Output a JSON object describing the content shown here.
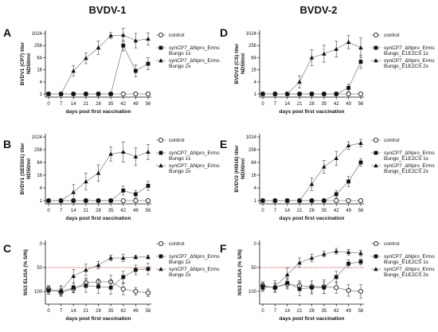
{
  "figure": {
    "column_titles": [
      "BVDV-1",
      "BVDV-2"
    ]
  },
  "chart_data": [
    {
      "type": "line",
      "panel": "A",
      "ylabel": "BVDV1 (CP7) titer ND50/ml",
      "xlabel": "days post first vaccination",
      "x": [
        0,
        7,
        14,
        21,
        28,
        35,
        42,
        49,
        56
      ],
      "yscale": "log2",
      "yticks": [
        "1",
        "4",
        "16",
        "64",
        "256",
        "1024"
      ],
      "ylim": [
        1,
        1024
      ],
      "series": [
        {
          "name": "control",
          "marker": "circle-open",
          "values": [
            1,
            1,
            1,
            1,
            1,
            1,
            1,
            1,
            1
          ]
        },
        {
          "name_parts": [
            "synCP7_ΔN",
            "pro",
            "_E",
            "rms",
            " Bungo 1x"
          ],
          "name": "synCP7_ΔNpro_Erms Bungo 1x",
          "marker": "square",
          "values": [
            1,
            1,
            1,
            1,
            1,
            1,
            256,
            14,
            32
          ],
          "err": [
            0,
            0,
            0,
            0,
            0,
            0,
            0.9,
            1.0,
            1.0
          ]
        },
        {
          "name_parts": [
            "synCP7_ΔN",
            "pro",
            "_E",
            "rms",
            " Bungo 2x"
          ],
          "name": "synCP7_ΔNpro_Erms Bungo 2x",
          "marker": "triangle",
          "values": [
            1,
            1,
            14,
            60,
            200,
            800,
            850,
            450,
            550
          ],
          "err": [
            0,
            0,
            0.9,
            0.9,
            1.1,
            0.5,
            1.1,
            1.2,
            1.0
          ]
        }
      ]
    },
    {
      "type": "line",
      "panel": "B",
      "ylabel": "BVDV1 (SE5501) titer ND50/ml",
      "xlabel": "days post first vaccination",
      "x": [
        0,
        7,
        14,
        21,
        28,
        35,
        42,
        49,
        56
      ],
      "yscale": "log2",
      "yticks": [
        "1",
        "4",
        "16",
        "64",
        "256",
        "1024"
      ],
      "ylim": [
        1,
        1024
      ],
      "series": [
        {
          "name": "control",
          "marker": "circle-open",
          "values": [
            1,
            1,
            1,
            1,
            1,
            1,
            1,
            1,
            1
          ]
        },
        {
          "name_parts": [
            "synCP7_ΔN",
            "pro",
            "_",
            "",
            ""
          ],
          "name_lines": [
            "synCP7_ΔN",
            "E",
            " Bungo 1x"
          ],
          "name": "synCP7_ΔNpro_Erms Bungo 1x",
          "marker": "square",
          "values": [
            1,
            1,
            1,
            1,
            1,
            1,
            3,
            2,
            5
          ],
          "err": [
            0,
            0,
            0,
            0,
            0,
            0,
            0.7,
            0.6,
            0.7
          ]
        },
        {
          "name": "synCP7_ΔNpro_Erms Bungo 2x",
          "marker": "triangle",
          "values": [
            1,
            1,
            2.5,
            8,
            20,
            160,
            200,
            120,
            200
          ],
          "err": [
            0,
            0,
            1.2,
            1.3,
            1.3,
            1.1,
            1.6,
            1.4,
            1.2
          ]
        }
      ]
    },
    {
      "type": "line",
      "panel": "C",
      "ylabel": "NS3 ELISA (% S/N)",
      "xlabel": "days post first vaccination",
      "x": [
        0,
        7,
        14,
        21,
        28,
        35,
        42,
        49,
        56
      ],
      "yscale": "reversed",
      "yticks": [
        "0",
        "50",
        "100"
      ],
      "ylim": [
        0,
        120
      ],
      "cutoff": 50,
      "series": [
        {
          "name": "control",
          "marker": "circle-open",
          "values": [
            95,
            102,
            95,
            82,
            80,
            80,
            95,
            100,
            103
          ],
          "err": [
            7,
            8,
            8,
            10,
            6,
            14,
            12,
            8,
            8
          ]
        },
        {
          "name": "synCP7_ΔNpro_Erms Bungo 1x",
          "marker": "square",
          "values": [
            98,
            100,
            92,
            88,
            90,
            92,
            70,
            55,
            53
          ],
          "err": [
            8,
            10,
            10,
            14,
            14,
            14,
            12,
            10,
            12
          ]
        },
        {
          "name": "synCP7_ΔNpro_Erms Bungo 2x",
          "marker": "triangle",
          "values": [
            98,
            98,
            68,
            55,
            45,
            30,
            30,
            28,
            28
          ],
          "err": [
            8,
            10,
            14,
            12,
            8,
            6,
            8,
            4,
            4
          ]
        }
      ]
    },
    {
      "type": "line",
      "panel": "D",
      "ylabel": "BVDV2 (CS) titer ND50/ml",
      "xlabel": "days post first vaccination",
      "x": [
        0,
        7,
        14,
        21,
        28,
        35,
        42,
        49,
        56
      ],
      "yscale": "log2",
      "yticks": [
        "1",
        "4",
        "16",
        "64",
        "256",
        "1024"
      ],
      "ylim": [
        1,
        1024
      ],
      "series": [
        {
          "name": "control",
          "marker": "circle-open",
          "values": [
            1,
            1,
            1,
            1,
            1,
            1,
            1,
            1,
            1
          ]
        },
        {
          "name": "synCP7_ΔNpro_Erms Bungo_E1E2CS 1x",
          "marker": "square",
          "values": [
            1,
            1,
            1,
            1,
            1,
            1,
            1,
            2,
            40
          ],
          "err": [
            0,
            0,
            0,
            0,
            0,
            0,
            0,
            0.6,
            1.1
          ]
        },
        {
          "name": "synCP7_ΔNpro_Erms Bungo_E1E2CS 2x",
          "marker": "triangle",
          "values": [
            1,
            1,
            1,
            4,
            64,
            100,
            170,
            380,
            200
          ],
          "err": [
            0,
            0,
            0,
            1.0,
            1.3,
            1.4,
            1.3,
            1.1,
            1.6
          ]
        }
      ]
    },
    {
      "type": "line",
      "panel": "E",
      "ylabel": "BVDV2 (HI916) titer ND50/ml",
      "xlabel": "days post first vaccination",
      "x": [
        0,
        7,
        14,
        21,
        28,
        35,
        42,
        49,
        56
      ],
      "yscale": "log2",
      "yticks": [
        "1",
        "4",
        "16",
        "64",
        "256",
        "1024"
      ],
      "ylim": [
        1,
        1024
      ],
      "series": [
        {
          "name": "control",
          "marker": "circle-open",
          "values": [
            1,
            1,
            1,
            1,
            1,
            1,
            1,
            1,
            1
          ]
        },
        {
          "name": "synCP7_ΔNpro_Erms Bungo_E1E2CS 1x",
          "marker": "square",
          "values": [
            1,
            1,
            1,
            1,
            1,
            1,
            2,
            8,
            64
          ],
          "err": [
            0,
            0,
            0,
            0,
            0,
            0,
            0.6,
            0.8,
            0.6
          ]
        },
        {
          "name": "synCP7_ΔNpro_Erms Bungo_E1E2CS 2x",
          "marker": "triangle",
          "values": [
            1,
            1,
            1,
            1,
            6,
            40,
            100,
            400,
            520
          ],
          "err": [
            0,
            0,
            0,
            0,
            1.0,
            1.0,
            1.1,
            0.6,
            0.6
          ]
        }
      ]
    },
    {
      "type": "line",
      "panel": "F",
      "ylabel": "NS3 ELISA (% S/N)",
      "xlabel": "days post first vaccination",
      "x": [
        0,
        7,
        14,
        21,
        28,
        35,
        42,
        49,
        56
      ],
      "yscale": "reversed",
      "yticks": [
        "0",
        "50",
        "100"
      ],
      "ylim": [
        0,
        120
      ],
      "cutoff": 50,
      "series": [
        {
          "name": "control",
          "marker": "circle-open",
          "values": [
            88,
            92,
            85,
            88,
            90,
            90,
            92,
            98,
            100
          ],
          "err": [
            8,
            8,
            10,
            10,
            12,
            14,
            12,
            12,
            14
          ]
        },
        {
          "name": "synCP7_ΔNpro_Erms Bungo_E1E2CS 1x",
          "marker": "square",
          "values": [
            90,
            92,
            82,
            95,
            92,
            92,
            70,
            42,
            38
          ],
          "err": [
            8,
            10,
            10,
            14,
            14,
            12,
            12,
            8,
            6
          ]
        },
        {
          "name": "synCP7_ΔNpro_Erms Bungo_E1E2CS 2x",
          "marker": "triangle",
          "values": [
            92,
            90,
            65,
            40,
            30,
            22,
            16,
            18,
            20
          ],
          "err": [
            8,
            12,
            14,
            10,
            8,
            6,
            6,
            6,
            6
          ]
        }
      ]
    }
  ]
}
